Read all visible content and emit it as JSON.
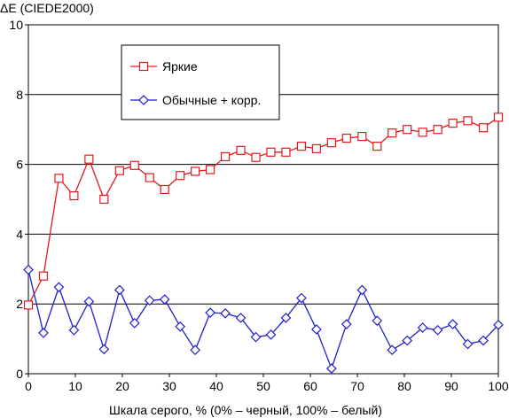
{
  "chart_data": {
    "type": "line",
    "title": "ΔE (CIEDE2000)",
    "xlabel": "Шкала серого, % (0% – черный, 100% – белый)",
    "ylabel": "",
    "xlim": [
      0,
      100
    ],
    "ylim": [
      0,
      10
    ],
    "xticks": [
      0,
      10,
      20,
      30,
      40,
      50,
      60,
      70,
      80,
      90,
      100
    ],
    "yticks": [
      0,
      2,
      4,
      6,
      8,
      10
    ],
    "grid": "horizontal",
    "legend_position": "upper-left-inside",
    "x": [
      0,
      3.2,
      6.5,
      9.7,
      12.9,
      16.1,
      19.4,
      22.6,
      25.8,
      29.0,
      32.3,
      35.5,
      38.7,
      41.9,
      45.2,
      48.4,
      51.6,
      54.8,
      58.1,
      61.3,
      64.5,
      67.7,
      71.0,
      74.2,
      77.4,
      80.6,
      83.9,
      87.1,
      90.3,
      93.5,
      96.8,
      100
    ],
    "series": [
      {
        "name": "Яркие",
        "color": "#e31a1c",
        "marker": "square",
        "values": [
          1.97,
          2.8,
          5.6,
          5.1,
          6.15,
          5.0,
          5.82,
          5.97,
          5.62,
          5.28,
          5.68,
          5.8,
          5.85,
          6.22,
          6.4,
          6.2,
          6.35,
          6.35,
          6.52,
          6.45,
          6.62,
          6.75,
          6.8,
          6.52,
          6.9,
          7.0,
          6.92,
          7.0,
          7.18,
          7.25,
          7.05,
          7.35
        ]
      },
      {
        "name": "Обычные + корр.",
        "color": "#1f1fcc",
        "marker": "diamond",
        "values": [
          2.98,
          1.17,
          2.48,
          1.25,
          2.07,
          0.7,
          2.4,
          1.45,
          2.1,
          2.13,
          1.35,
          0.68,
          1.75,
          1.73,
          1.6,
          1.05,
          1.12,
          1.6,
          2.17,
          1.27,
          0.15,
          1.42,
          2.4,
          1.52,
          0.68,
          0.95,
          1.32,
          1.25,
          1.42,
          0.85,
          0.95,
          1.4
        ]
      }
    ]
  }
}
